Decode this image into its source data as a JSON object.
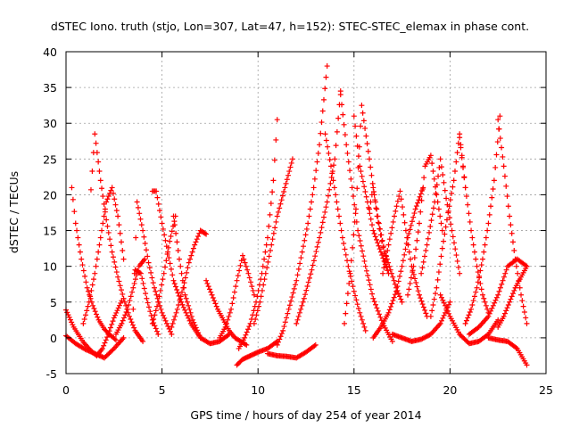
{
  "chart_data": {
    "type": "scatter",
    "title": "dSTEC Iono. truth (stjo, Lon=307, Lat=47, h=152): STEC-STEC_elemax in phase cont.",
    "xlabel": "GPS time / hours of day 254 of year 2014",
    "ylabel": "dSTEC  / TECUs",
    "xlim": [
      0,
      25
    ],
    "ylim": [
      -5,
      40
    ],
    "xticks": [
      0,
      5,
      10,
      15,
      20,
      25
    ],
    "yticks": [
      -5,
      0,
      5,
      10,
      15,
      20,
      25,
      30,
      35,
      40
    ],
    "grid": true,
    "marker": "+",
    "color": "#ff0000",
    "series": [
      {
        "x": [
          0.0,
          0.4,
          0.9,
          1.3,
          1.6,
          1.9,
          2.2,
          2.5,
          2.9
        ],
        "y": [
          3.9,
          1.5,
          -0.6,
          -1.8,
          -2.5,
          -1.5,
          0.5,
          2.8,
          5.2
        ]
      },
      {
        "x": [
          0.3,
          0.5,
          0.8,
          1.1,
          1.4,
          1.7,
          2.0,
          2.3,
          2.6
        ],
        "y": [
          21.0,
          16.0,
          11.0,
          7.0,
          4.5,
          2.5,
          1.2,
          0.4,
          -0.3
        ]
      },
      {
        "x": [
          0.0,
          0.5,
          1.0,
          1.5,
          2.0,
          2.5,
          3.0
        ],
        "y": [
          0.3,
          -0.8,
          -1.6,
          -2.2,
          -2.8,
          -1.5,
          0.0
        ]
      },
      {
        "x": [
          0.9,
          1.2,
          1.5,
          1.8,
          2.1,
          2.4,
          2.7,
          3.0
        ],
        "y": [
          2.0,
          5.0,
          9.0,
          14.0,
          19.0,
          21.0,
          17.0,
          11.0
        ]
      },
      {
        "x": [
          1.3,
          1.5,
          1.8,
          2.1,
          2.4,
          2.7,
          3.0,
          3.3,
          3.6,
          4.0
        ],
        "y": [
          20.7,
          28.5,
          22.0,
          16.5,
          12.0,
          8.5,
          5.5,
          3.0,
          1.0,
          -0.5
        ]
      },
      {
        "x": [
          2.6,
          2.9,
          3.2,
          3.5,
          3.8,
          4.1
        ],
        "y": [
          0.5,
          2.0,
          4.0,
          7.0,
          10.0,
          11.0
        ]
      },
      {
        "x": [
          3.5,
          3.7,
          4.0,
          4.3,
          4.6,
          5.0,
          5.5
        ],
        "y": [
          4.0,
          19.0,
          15.0,
          10.5,
          7.0,
          3.5,
          0.5
        ]
      },
      {
        "x": [
          3.6,
          3.9,
          4.2,
          4.5,
          4.8
        ],
        "y": [
          9.5,
          9.0,
          5.5,
          2.5,
          0.5
        ]
      },
      {
        "x": [
          4.5,
          4.7,
          5.0,
          5.3,
          5.6,
          6.0,
          6.5,
          7.0
        ],
        "y": [
          20.5,
          20.5,
          16.0,
          12.0,
          8.0,
          5.0,
          2.0,
          0.0
        ]
      },
      {
        "x": [
          4.5,
          4.8,
          5.1,
          5.4,
          5.7
        ],
        "y": [
          2.0,
          5.0,
          9.0,
          13.5,
          17.0
        ]
      },
      {
        "x": [
          5.5,
          5.8,
          6.1,
          6.4,
          6.7,
          7.0,
          7.3
        ],
        "y": [
          1.5,
          4.0,
          7.0,
          10.5,
          13.0,
          15.0,
          14.5
        ]
      },
      {
        "x": [
          5.6,
          5.9,
          6.2,
          6.6,
          7.0,
          7.5,
          8.0,
          8.5
        ],
        "y": [
          17.0,
          11.0,
          6.0,
          2.5,
          0.0,
          -0.8,
          -0.5,
          0.5
        ]
      },
      {
        "x": [
          7.3,
          7.6,
          7.9,
          8.2,
          8.5,
          8.8,
          9.1,
          9.4
        ],
        "y": [
          8.0,
          6.0,
          4.0,
          2.5,
          1.0,
          0.0,
          -0.5,
          -1.0
        ]
      },
      {
        "x": [
          8.0,
          8.3,
          8.6,
          8.9,
          9.2,
          9.5,
          9.8
        ],
        "y": [
          0.0,
          1.5,
          4.0,
          8.0,
          11.5,
          9.0,
          6.0
        ]
      },
      {
        "x": [
          8.9,
          9.2,
          9.6,
          10.0,
          10.5,
          11.0
        ],
        "y": [
          -3.8,
          -3.0,
          -2.5,
          -2.0,
          -1.5,
          -0.5
        ]
      },
      {
        "x": [
          9.0,
          9.3,
          9.6,
          9.9,
          10.2,
          10.5,
          10.8,
          11.0
        ],
        "y": [
          -1.5,
          0.0,
          2.0,
          5.0,
          9.0,
          14.0,
          22.0,
          30.5
        ]
      },
      {
        "x": [
          9.8,
          10.1,
          10.4,
          10.7,
          11.0,
          11.4,
          11.8
        ],
        "y": [
          2.0,
          5.0,
          9.0,
          13.0,
          17.0,
          21.0,
          25.0
        ]
      },
      {
        "x": [
          10.5,
          11.0,
          11.5,
          12.0,
          12.5,
          13.0
        ],
        "y": [
          -2.2,
          -2.5,
          -2.6,
          -2.8,
          -2.0,
          -1.0
        ]
      },
      {
        "x": [
          11.0,
          11.3,
          11.6,
          12.0,
          12.3,
          12.6,
          12.9,
          13.2,
          13.6
        ],
        "y": [
          -1.0,
          1.0,
          4.0,
          8.0,
          12.0,
          16.0,
          21.0,
          27.0,
          38.0
        ]
      },
      {
        "x": [
          12.0,
          12.4,
          12.8,
          13.2,
          13.6,
          14.0,
          14.3
        ],
        "y": [
          2.0,
          5.5,
          9.5,
          14.0,
          19.0,
          25.0,
          34.5
        ]
      },
      {
        "x": [
          13.5,
          13.8,
          14.1,
          14.4,
          14.7,
          15.0,
          15.3,
          15.6
        ],
        "y": [
          28.5,
          24.0,
          19.0,
          14.0,
          10.0,
          6.5,
          3.5,
          1.0
        ]
      },
      {
        "x": [
          14.3,
          14.6,
          14.9,
          15.2,
          15.6,
          16.0,
          16.5,
          17.0
        ],
        "y": [
          34.0,
          27.0,
          21.0,
          15.0,
          10.0,
          5.5,
          2.0,
          -0.5
        ]
      },
      {
        "x": [
          14.5,
          14.8,
          15.1,
          15.4,
          15.8,
          16.2,
          16.7
        ],
        "y": [
          2.0,
          9.0,
          18.0,
          32.5,
          25.0,
          17.0,
          10.0
        ]
      },
      {
        "x": [
          15.0,
          15.3,
          15.7,
          16.0,
          16.4,
          16.8
        ],
        "y": [
          31.0,
          24.0,
          19.0,
          15.0,
          12.0,
          9.0
        ]
      },
      {
        "x": [
          15.8,
          16.0,
          16.3,
          16.6,
          16.9,
          17.2,
          17.5
        ],
        "y": [
          18.0,
          21.0,
          16.0,
          12.0,
          9.5,
          7.0,
          5.0
        ]
      },
      {
        "x": [
          16.0,
          16.4,
          16.8,
          17.2,
          17.5,
          17.8,
          18.2,
          18.6
        ],
        "y": [
          0.0,
          1.5,
          3.5,
          6.5,
          10.0,
          14.0,
          18.0,
          21.0
        ]
      },
      {
        "x": [
          16.5,
          16.8,
          17.1,
          17.4,
          17.7,
          18.0,
          18.4,
          18.8
        ],
        "y": [
          9.0,
          13.0,
          17.0,
          20.5,
          15.0,
          10.0,
          6.0,
          3.0
        ]
      },
      {
        "x": [
          17.0,
          17.5,
          18.0,
          18.5,
          19.0,
          19.5,
          20.0
        ],
        "y": [
          0.5,
          0.0,
          -0.5,
          -0.2,
          0.5,
          2.0,
          5.0
        ]
      },
      {
        "x": [
          17.8,
          18.1,
          18.4,
          18.7,
          19.0,
          19.3,
          19.6
        ],
        "y": [
          6.0,
          10.0,
          16.0,
          24.0,
          25.5,
          20.0,
          15.0
        ]
      },
      {
        "x": [
          18.5,
          18.8,
          19.2,
          19.5,
          19.8,
          20.1,
          20.5
        ],
        "y": [
          9.0,
          13.0,
          19.0,
          25.0,
          19.5,
          15.0,
          9.0
        ]
      },
      {
        "x": [
          19.0,
          19.3,
          19.6,
          19.9,
          20.2,
          20.5,
          20.8
        ],
        "y": [
          3.0,
          7.0,
          12.5,
          17.5,
          22.0,
          28.5,
          21.0
        ]
      },
      {
        "x": [
          19.5,
          20.0,
          20.5,
          21.0,
          21.5,
          22.0,
          22.5
        ],
        "y": [
          6.0,
          3.0,
          0.5,
          -0.8,
          -0.5,
          0.5,
          2.5
        ]
      },
      {
        "x": [
          20.5,
          20.8,
          21.1,
          21.4,
          21.7,
          22.0
        ],
        "y": [
          28.0,
          21.0,
          15.0,
          10.0,
          6.0,
          3.5
        ]
      },
      {
        "x": [
          20.8,
          21.1,
          21.4,
          21.7,
          22.0,
          22.3,
          22.6
        ],
        "y": [
          2.0,
          4.0,
          7.0,
          11.0,
          16.0,
          22.0,
          31.0
        ]
      },
      {
        "x": [
          22.5,
          22.8,
          23.1,
          23.4,
          23.7,
          24.0
        ],
        "y": [
          30.5,
          24.0,
          17.0,
          11.0,
          6.0,
          2.0
        ]
      },
      {
        "x": [
          21.0,
          21.5,
          22.0,
          22.5,
          23.0,
          23.5,
          24.0
        ],
        "y": [
          0.5,
          1.5,
          3.0,
          6.0,
          10.0,
          11.0,
          10.0
        ]
      },
      {
        "x": [
          22.0,
          22.5,
          23.0,
          23.5,
          24.0
        ],
        "y": [
          0.0,
          -0.3,
          -0.5,
          -1.5,
          -3.8
        ]
      },
      {
        "x": [
          22.5,
          22.8,
          23.1,
          23.4,
          23.7,
          24.0
        ],
        "y": [
          1.5,
          3.0,
          5.0,
          7.0,
          8.5,
          10.0
        ]
      }
    ]
  }
}
